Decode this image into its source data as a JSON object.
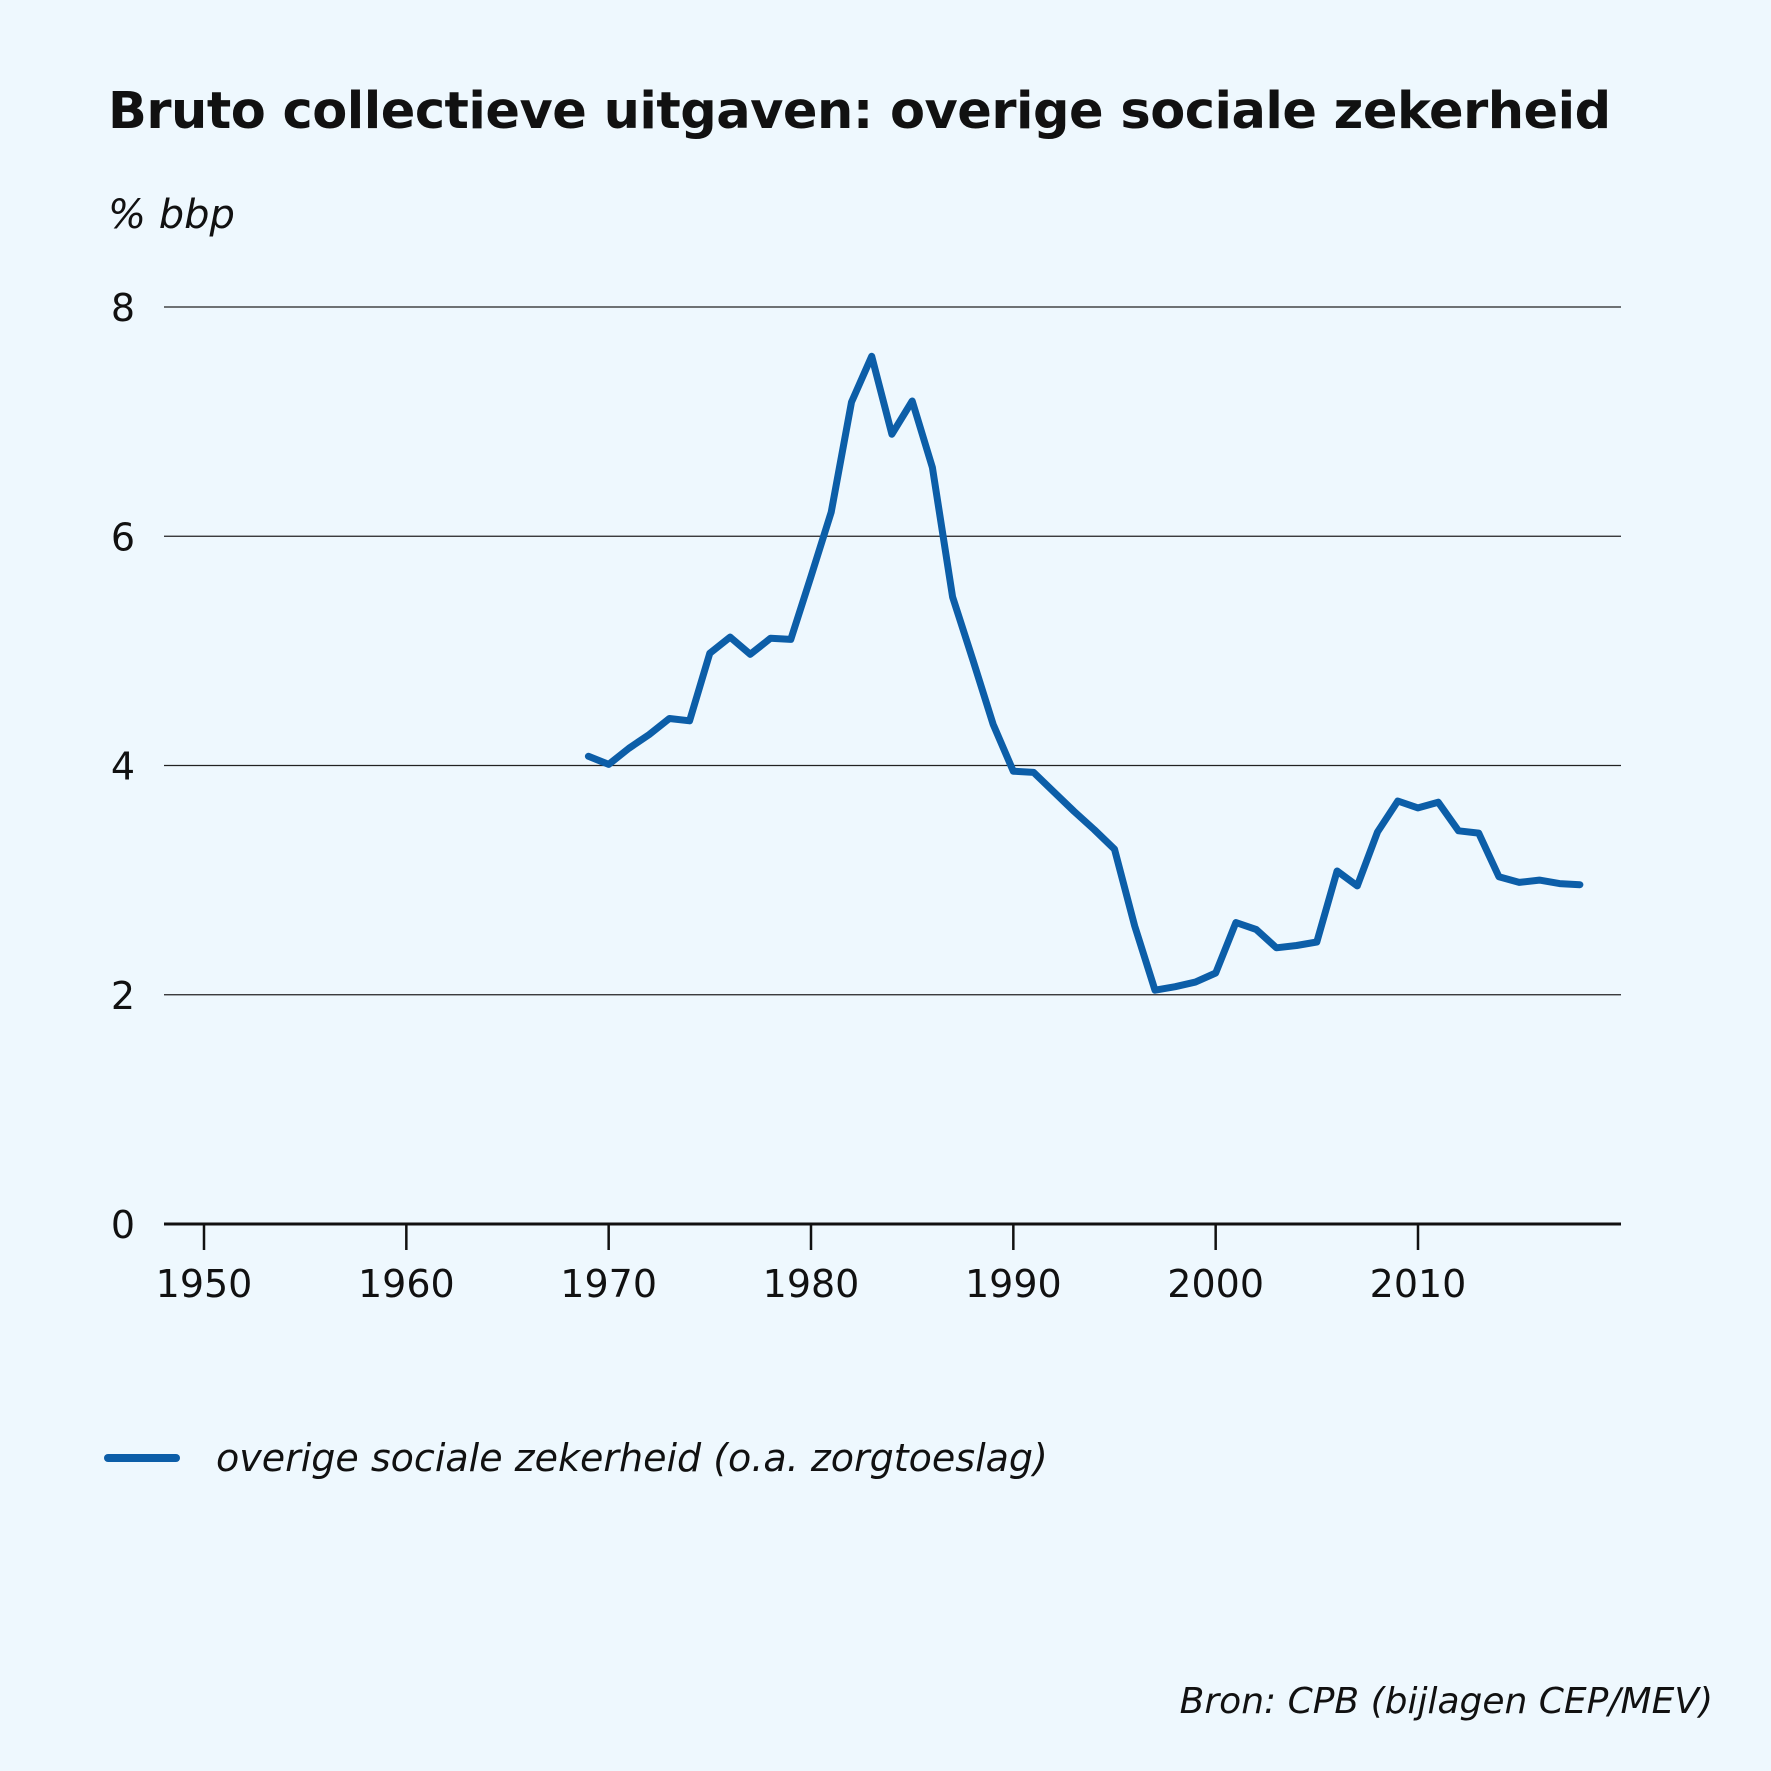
{
  "chart_data": {
    "type": "line",
    "title": "Bruto collectieve uitgaven: overige sociale zekerheid",
    "ylabel": "% bbp",
    "xlabel": "",
    "xlim": [
      1950,
      2020
    ],
    "ylim": [
      0,
      8
    ],
    "x_ticks": [
      1950,
      1960,
      1970,
      1980,
      1990,
      2000,
      2010
    ],
    "y_ticks": [
      0,
      2,
      4,
      6,
      8
    ],
    "grid": "horizontal",
    "legend_position": "bottom-left",
    "series": [
      {
        "name": "overige sociale zekerheid (o.a. zorgtoeslag)",
        "color": "#0c5ea8",
        "x": [
          1969,
          1970,
          1971,
          1972,
          1973,
          1974,
          1975,
          1976,
          1977,
          1978,
          1979,
          1980,
          1981,
          1982,
          1983,
          1984,
          1985,
          1986,
          1987,
          1988,
          1989,
          1990,
          1991,
          1992,
          1993,
          1994,
          1995,
          1996,
          1997,
          1998,
          1999,
          2000,
          2001,
          2002,
          2003,
          2004,
          2005,
          2006,
          2007,
          2008,
          2009,
          2010,
          2011,
          2012,
          2013,
          2014,
          2015,
          2016,
          2017,
          2018
        ],
        "y": [
          4.08,
          4.01,
          4.15,
          4.27,
          4.41,
          4.39,
          4.98,
          5.12,
          4.97,
          5.11,
          5.1,
          5.65,
          6.21,
          7.17,
          7.57,
          6.89,
          7.18,
          6.6,
          5.47,
          4.92,
          4.36,
          3.95,
          3.94,
          3.77,
          3.6,
          3.44,
          3.27,
          2.6,
          2.04,
          2.07,
          2.11,
          2.19,
          2.63,
          2.57,
          2.41,
          2.43,
          2.46,
          3.08,
          2.95,
          3.42,
          3.69,
          3.63,
          3.68,
          3.43,
          3.41,
          3.03,
          2.98,
          3.0,
          2.97,
          2.96
        ]
      }
    ],
    "source": "Bron: CPB (bijlagen CEP/MEV)"
  }
}
